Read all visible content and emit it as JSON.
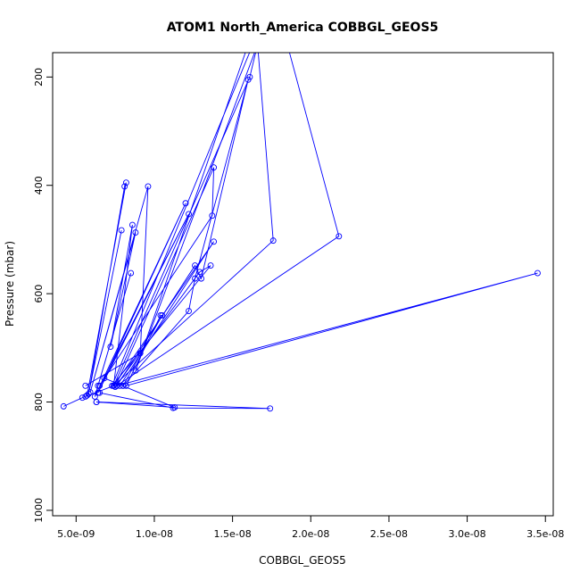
{
  "chart_data": {
    "type": "line",
    "title": "ATOM1 North_America COBBGL_GEOS5",
    "xlabel": "COBBGL_GEOS5",
    "ylabel": "Pressure (mbar)",
    "xlim": [
      3.5e-09,
      3.55e-08
    ],
    "ylim": [
      1010,
      155
    ],
    "y_axis_inverted": true,
    "x_ticks": [
      5e-09,
      1e-08,
      1.5e-08,
      2e-08,
      2.5e-08,
      3e-08,
      3.5e-08
    ],
    "x_tick_labels": [
      "5.0e-09",
      "1.0e-08",
      "1.5e-08",
      "2.0e-08",
      "2.5e-08",
      "3.0e-08",
      "3.5e-08"
    ],
    "y_ticks": [
      200,
      400,
      600,
      800,
      1000
    ],
    "y_tick_labels": [
      "200",
      "400",
      "600",
      "800",
      "1000"
    ],
    "grid": false,
    "legend": "none",
    "series_color": "#0000ff",
    "series": [
      {
        "x": [
          4.2e-09,
          5.4e-09,
          5.7e-09,
          8.2e-09,
          8.1e-09,
          5.8e-09,
          7.9e-09
        ],
        "y": [
          808,
          792,
          788,
          395,
          402,
          785,
          483
        ]
      },
      {
        "x": [
          5.6e-09,
          7.4e-09,
          8.6e-09,
          7.2e-09,
          8.8e-09,
          5.9e-09,
          9.6e-09,
          9.1e-09,
          5.6e-09
        ],
        "y": [
          790,
          770,
          473,
          698,
          487,
          782,
          402,
          710,
          770
        ]
      },
      {
        "x": [
          6.4e-09,
          8.5e-09,
          6.2e-09,
          1.2e-08,
          6.4e-09,
          1.22e-08,
          6.8e-09,
          1.13e-08,
          6.3e-09
        ],
        "y": [
          770,
          562,
          790,
          433,
          783,
          453,
          756,
          810,
          800
        ]
      },
      {
        "x": [
          6.3e-09,
          1.74e-08,
          1.12e-08,
          6.5e-09
        ],
        "y": [
          800,
          812,
          811,
          783
        ]
      },
      {
        "x": [
          6.5e-09,
          1.37e-08,
          1.38e-08,
          7.5e-09,
          1.29e-08,
          1.36e-08,
          7.3e-09,
          1.63e-08,
          1.6e-08,
          8.8e-09,
          1.66e-08,
          1.85e-08,
          2.18e-08,
          7.6e-09
        ],
        "y": [
          770,
          456,
          367,
          772,
          560,
          548,
          770,
          140,
          140,
          742,
          140,
          140,
          494,
          770
        ]
      },
      {
        "x": [
          7.4e-09,
          1.61e-08,
          1.66e-08,
          1.76e-08,
          7.4e-09,
          1.38e-08,
          7.8e-09
        ],
        "y": [
          770,
          200,
          140,
          502,
          770,
          504,
          770
        ]
      },
      {
        "x": [
          7.6e-09,
          1.26e-08,
          1.3e-08,
          1.6e-08,
          1.26e-08,
          1.22e-08,
          8e-09
        ],
        "y": [
          770,
          548,
          572,
          205,
          572,
          632,
          770
        ]
      },
      {
        "x": [
          8e-09,
          1.05e-08,
          1.04e-08,
          8.2e-09,
          3.45e-08,
          7.6e-09
        ],
        "y": [
          770,
          640,
          640,
          770,
          562,
          770
        ]
      }
    ]
  }
}
